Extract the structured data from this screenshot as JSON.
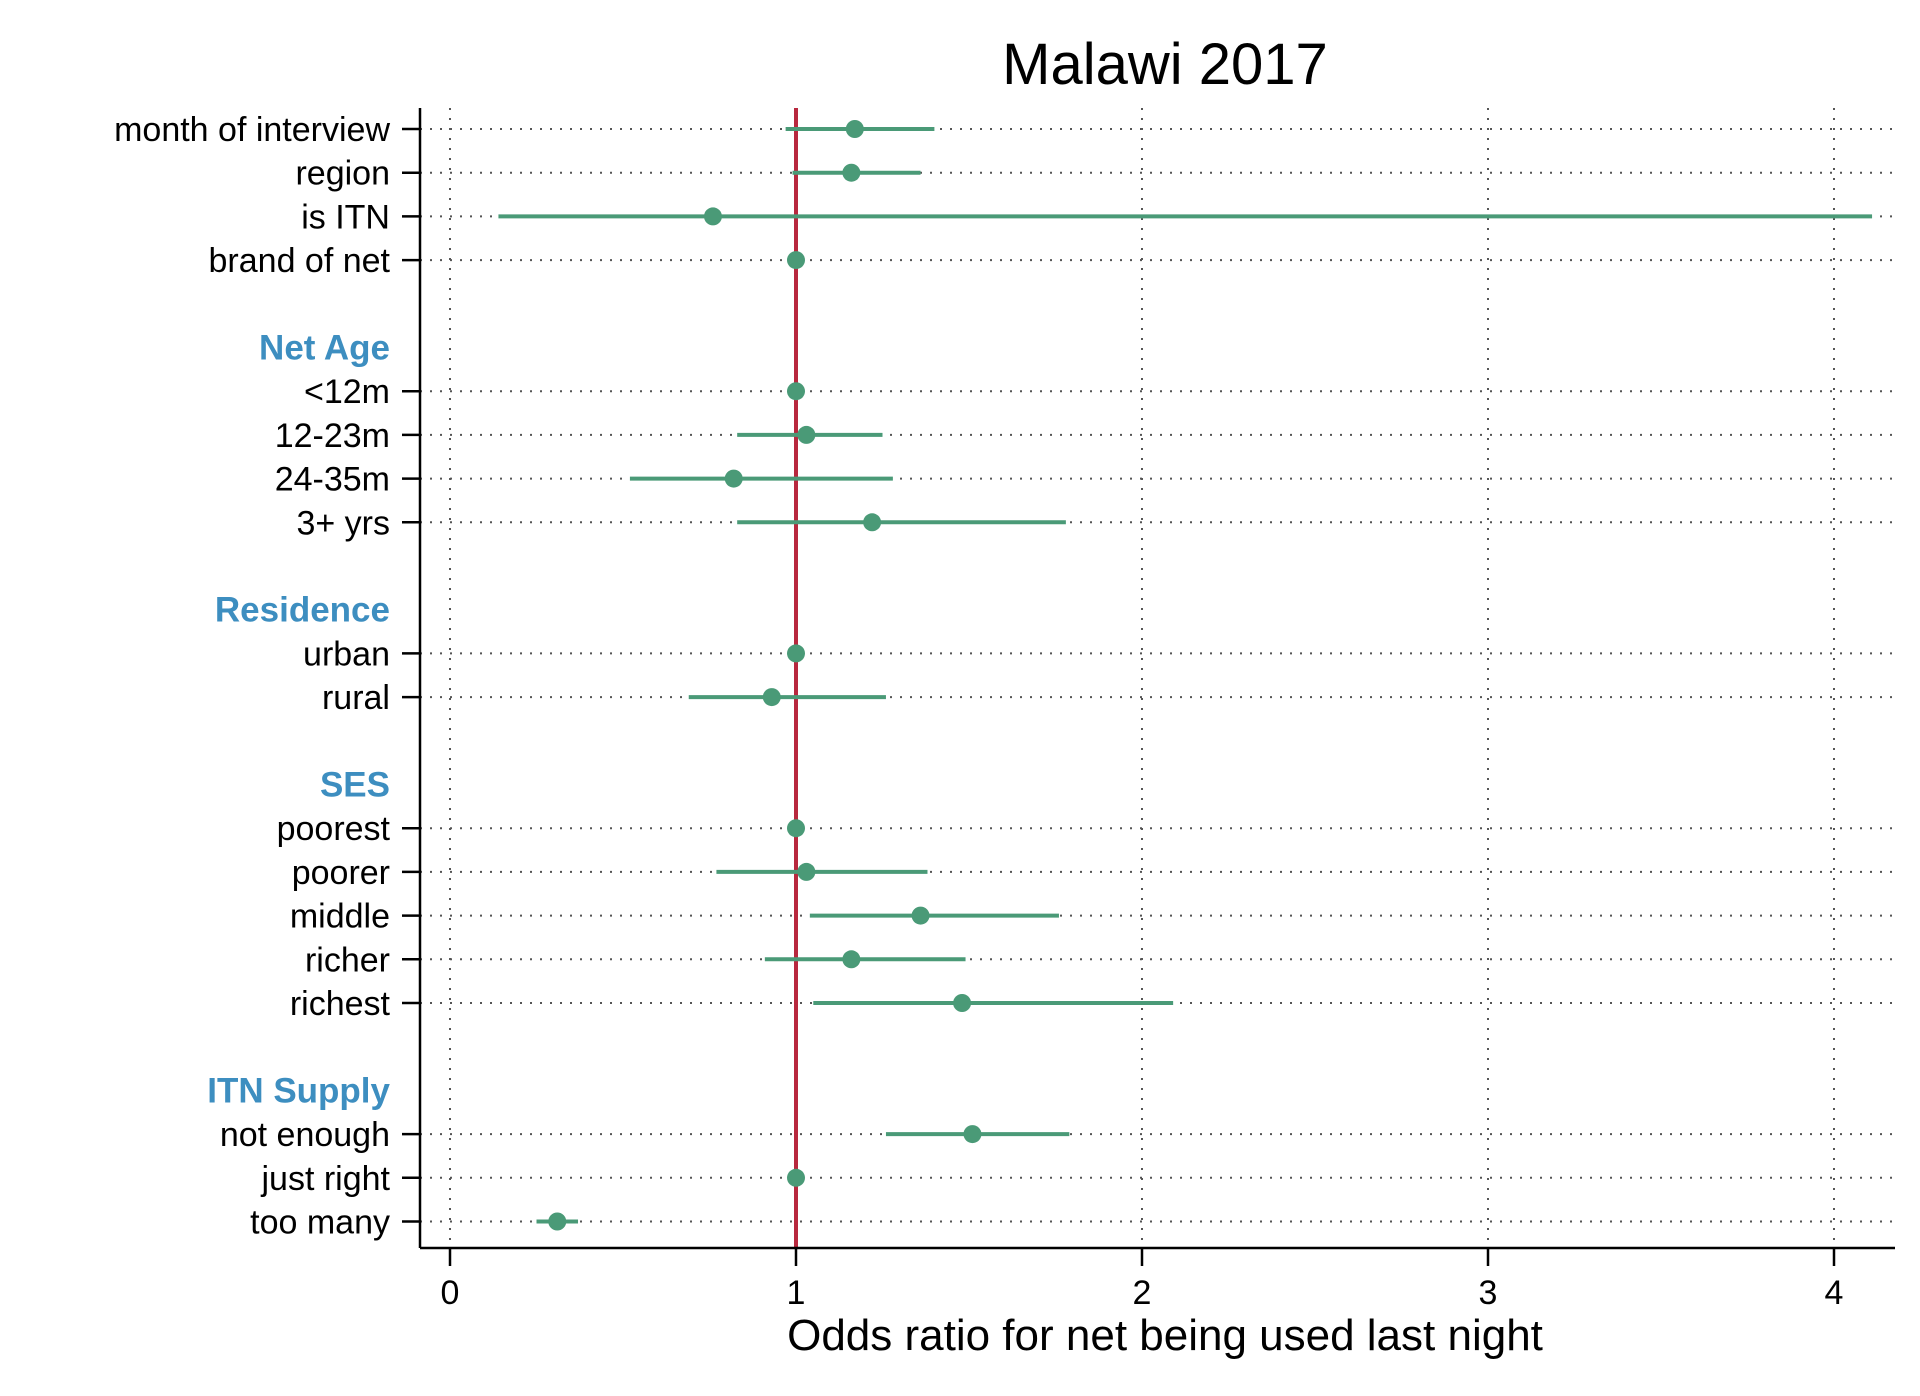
{
  "chart_data": {
    "type": "scatter",
    "title": "Malawi 2017",
    "xlabel": "Odds ratio for net being used last night",
    "ylabel": "",
    "xlim": [
      0,
      4.2
    ],
    "xticks": [
      0,
      1,
      2,
      3,
      4
    ],
    "reference_line": 1,
    "grid": true,
    "colors": {
      "point": "#4a9a77",
      "reference": "#b8283e",
      "group": "#3d8ec0",
      "axis": "#000000"
    },
    "rows": [
      {
        "kind": "item",
        "label": "month of interview",
        "estimate": 1.17,
        "lower": 0.97,
        "upper": 1.4
      },
      {
        "kind": "item",
        "label": "region",
        "estimate": 1.16,
        "lower": 0.99,
        "upper": 1.36
      },
      {
        "kind": "item",
        "label": "is ITN",
        "estimate": 0.76,
        "lower": 0.14,
        "upper": 4.11
      },
      {
        "kind": "item",
        "label": "brand of net",
        "estimate": 1.0,
        "lower": 1.0,
        "upper": 1.0
      },
      {
        "kind": "gap"
      },
      {
        "kind": "group",
        "label": "Net Age"
      },
      {
        "kind": "item",
        "label": "<12m",
        "estimate": 1.0,
        "lower": 1.0,
        "upper": 1.0
      },
      {
        "kind": "item",
        "label": "12-23m",
        "estimate": 1.03,
        "lower": 0.83,
        "upper": 1.25
      },
      {
        "kind": "item",
        "label": "24-35m",
        "estimate": 0.82,
        "lower": 0.52,
        "upper": 1.28
      },
      {
        "kind": "item",
        "label": "3+ yrs",
        "estimate": 1.22,
        "lower": 0.83,
        "upper": 1.78
      },
      {
        "kind": "gap"
      },
      {
        "kind": "group",
        "label": "Residence"
      },
      {
        "kind": "item",
        "label": "urban",
        "estimate": 1.0,
        "lower": 1.0,
        "upper": 1.0
      },
      {
        "kind": "item",
        "label": "rural",
        "estimate": 0.93,
        "lower": 0.69,
        "upper": 1.26
      },
      {
        "kind": "gap"
      },
      {
        "kind": "group",
        "label": "SES"
      },
      {
        "kind": "item",
        "label": "poorest",
        "estimate": 1.0,
        "lower": 1.0,
        "upper": 1.0
      },
      {
        "kind": "item",
        "label": "poorer",
        "estimate": 1.03,
        "lower": 0.77,
        "upper": 1.38
      },
      {
        "kind": "item",
        "label": "middle",
        "estimate": 1.36,
        "lower": 1.04,
        "upper": 1.76
      },
      {
        "kind": "item",
        "label": "richer",
        "estimate": 1.16,
        "lower": 0.91,
        "upper": 1.49
      },
      {
        "kind": "item",
        "label": "richest",
        "estimate": 1.48,
        "lower": 1.05,
        "upper": 2.09
      },
      {
        "kind": "gap"
      },
      {
        "kind": "group",
        "label": "ITN Supply"
      },
      {
        "kind": "item",
        "label": "not enough",
        "estimate": 1.51,
        "lower": 1.26,
        "upper": 1.79
      },
      {
        "kind": "item",
        "label": "just right",
        "estimate": 1.0,
        "lower": 1.0,
        "upper": 1.0
      },
      {
        "kind": "item",
        "label": "too many",
        "estimate": 0.31,
        "lower": 0.25,
        "upper": 0.37
      }
    ]
  }
}
